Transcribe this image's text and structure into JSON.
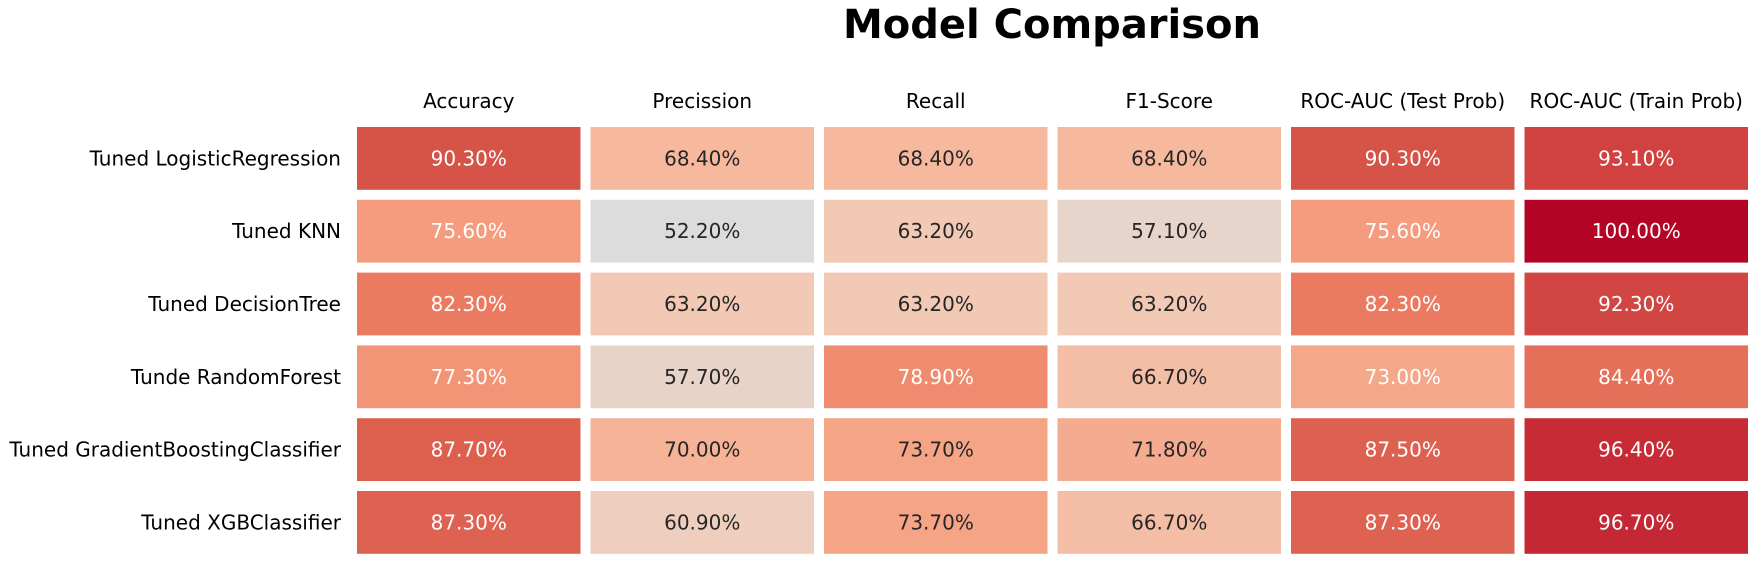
{
  "chart_data": {
    "type": "heatmap",
    "title": "Model Comparison",
    "columns": [
      "Accuracy",
      "Precission",
      "Recall",
      "F1-Score",
      "ROC-AUC (Test Prob)",
      "ROC-AUC (Train Prob)"
    ],
    "rows": [
      "Tuned LogisticRegression",
      "Tuned KNN",
      "Tuned DecisionTree",
      "Tunde RandomForest",
      "Tuned GradientBoostingClassifier",
      "Tuned XGBClassifier"
    ],
    "values": [
      [
        0.903,
        0.684,
        0.684,
        0.684,
        0.903,
        0.931
      ],
      [
        0.756,
        0.522,
        0.632,
        0.571,
        0.756,
        1.0
      ],
      [
        0.823,
        0.632,
        0.632,
        0.632,
        0.823,
        0.923
      ],
      [
        0.773,
        0.577,
        0.789,
        0.667,
        0.73,
        0.844
      ],
      [
        0.877,
        0.7,
        0.737,
        0.718,
        0.875,
        0.964
      ],
      [
        0.873,
        0.609,
        0.737,
        0.667,
        0.873,
        0.967
      ]
    ],
    "cell_labels": [
      [
        "90.30%",
        "68.40%",
        "68.40%",
        "68.40%",
        "90.30%",
        "93.10%"
      ],
      [
        "75.60%",
        "52.20%",
        "63.20%",
        "57.10%",
        "75.60%",
        "100.00%"
      ],
      [
        "82.30%",
        "63.20%",
        "63.20%",
        "63.20%",
        "82.30%",
        "92.30%"
      ],
      [
        "77.30%",
        "57.70%",
        "78.90%",
        "66.70%",
        "73.00%",
        "84.40%"
      ],
      [
        "87.70%",
        "70.00%",
        "73.70%",
        "71.80%",
        "87.50%",
        "96.40%"
      ],
      [
        "87.30%",
        "60.90%",
        "73.70%",
        "66.70%",
        "87.30%",
        "96.70%"
      ]
    ],
    "colormap": "coolwarm",
    "legend": "none",
    "column_labels_position": "top"
  }
}
